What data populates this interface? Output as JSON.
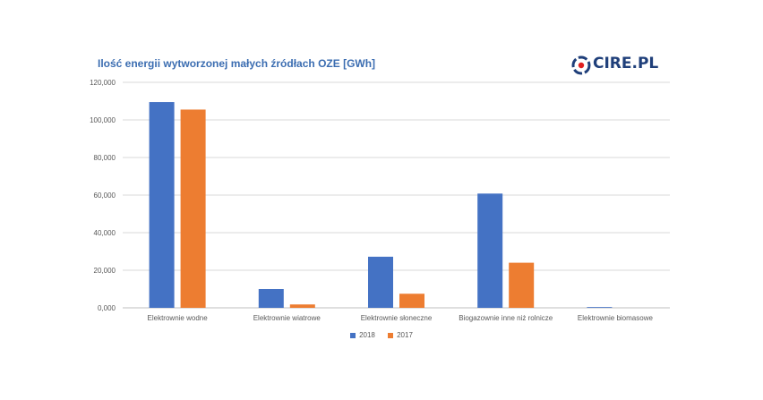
{
  "chart_data": {
    "type": "bar",
    "title": "Ilość energii wytworzonej małych źródłach OZE [GWh]",
    "categories": [
      "Elektrownie wodne",
      "Elektrownie wiatrowe",
      "Elektrownie słoneczne",
      "Biogazownie inne niż rolnicze",
      "Elektrownie biomasowe"
    ],
    "series": [
      {
        "name": "2018",
        "color": "#4472c4",
        "values": [
          109500,
          10000,
          27200,
          60800,
          400
        ]
      },
      {
        "name": "2017",
        "color": "#ed7d31",
        "values": [
          105500,
          1800,
          7500,
          24000,
          0
        ]
      }
    ],
    "ylim": [
      0,
      120000
    ],
    "yticks": [
      "0,000",
      "20,000",
      "40,000",
      "60,000",
      "80,000",
      "100,000",
      "120,000"
    ],
    "ytick_values": [
      0,
      20000,
      40000,
      60000,
      80000,
      100000,
      120000
    ],
    "grid": true,
    "legend_position": "bottom"
  },
  "logo": {
    "text": "CIRE.PL",
    "icon": "cire-logo-icon"
  }
}
